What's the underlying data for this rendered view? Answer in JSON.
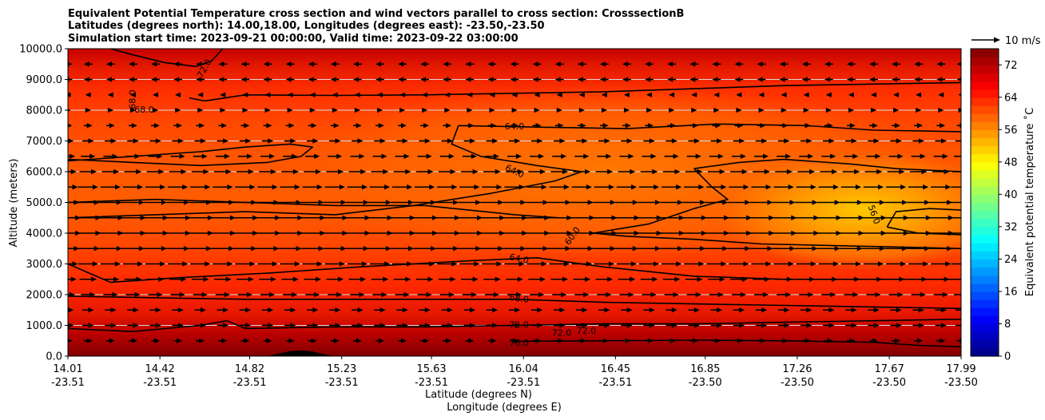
{
  "chart_data": {
    "type": "heatmap",
    "title": [
      "Equivalent Potential Temperature cross section and wind vectors parallel to cross section: CrosssectionB",
      "Latitudes (degrees north): 14.00,18.00, Longitudes (degrees east): -23.50,-23.50",
      "Simulation start time: 2023-09-21 00:00:00, Valid time: 2023-09-22 03:00:00"
    ],
    "xlabel": "Latitude (degrees N)",
    "xlabel2": "Longitude (degrees E)",
    "ylabel": "Altitude (meters)",
    "colorbar_label": "Equivalent potential temperature ˚C",
    "xlim": [
      14.01,
      17.99
    ],
    "ylim": [
      0,
      10000
    ],
    "x_ticks": [
      {
        "lat": "14.01",
        "lon": "-23.51",
        "v": 14.01
      },
      {
        "lat": "14.42",
        "lon": "-23.51",
        "v": 14.42
      },
      {
        "lat": "14.82",
        "lon": "-23.51",
        "v": 14.82
      },
      {
        "lat": "15.23",
        "lon": "-23.51",
        "v": 15.23
      },
      {
        "lat": "15.63",
        "lon": "-23.51",
        "v": 15.63
      },
      {
        "lat": "16.04",
        "lon": "-23.51",
        "v": 16.04
      },
      {
        "lat": "16.45",
        "lon": "-23.51",
        "v": 16.45
      },
      {
        "lat": "16.85",
        "lon": "-23.50",
        "v": 16.85
      },
      {
        "lat": "17.26",
        "lon": "-23.50",
        "v": 17.26
      },
      {
        "lat": "17.67",
        "lon": "-23.50",
        "v": 17.67
      },
      {
        "lat": "17.99",
        "lon": "-23.50",
        "v": 17.99
      }
    ],
    "y_ticks": [
      {
        "label": "0.0",
        "v": 0
      },
      {
        "label": "1000.0",
        "v": 1000
      },
      {
        "label": "2000.0",
        "v": 2000
      },
      {
        "label": "3000.0",
        "v": 3000
      },
      {
        "label": "4000.0",
        "v": 4000
      },
      {
        "label": "5000.0",
        "v": 5000
      },
      {
        "label": "6000.0",
        "v": 6000
      },
      {
        "label": "7000.0",
        "v": 7000
      },
      {
        "label": "8000.0",
        "v": 8000
      },
      {
        "label": "9000.0",
        "v": 9000
      },
      {
        "label": "10000.0",
        "v": 10000
      }
    ],
    "grid": "horizontal",
    "colorbar": {
      "min": 0,
      "max": 76,
      "step": 2,
      "tick_labels": [
        "0",
        "8",
        "16",
        "24",
        "32",
        "40",
        "48",
        "56",
        "64",
        "72"
      ],
      "tick_values": [
        0,
        8,
        16,
        24,
        32,
        40,
        48,
        56,
        64,
        72
      ],
      "colormap": "jet"
    },
    "wind_key": {
      "label": "10 m/s",
      "speed": 10
    },
    "contour_labels": [
      {
        "text": "72.0",
        "x": 14.62,
        "y": 9350,
        "rot": -60
      },
      {
        "text": "68.0",
        "x": 14.3,
        "y": 8350,
        "rot": -90
      },
      {
        "text": "68.0",
        "x": 14.35,
        "y": 8000,
        "rot": 0
      },
      {
        "text": "64.0",
        "x": 16.0,
        "y": 7450,
        "rot": 0
      },
      {
        "text": "64.0",
        "x": 16.0,
        "y": 6000,
        "rot": 25
      },
      {
        "text": "60.0",
        "x": 16.26,
        "y": 3900,
        "rot": -55
      },
      {
        "text": "64.0",
        "x": 16.02,
        "y": 3150,
        "rot": 12
      },
      {
        "text": "68.0",
        "x": 16.02,
        "y": 1860,
        "rot": 8
      },
      {
        "text": "72.0",
        "x": 16.02,
        "y": 1000,
        "rot": 0
      },
      {
        "text": "72.0",
        "x": 16.21,
        "y": 740,
        "rot": 0
      },
      {
        "text": "72.0",
        "x": 16.32,
        "y": 800,
        "rot": 0
      },
      {
        "text": "56.0",
        "x": 17.6,
        "y": 4600,
        "rot": 70
      },
      {
        "text": "76.0",
        "x": 16.02,
        "y": 420,
        "rot": 0
      }
    ],
    "contours": [
      {
        "level": 72,
        "points": [
          [
            14.2,
            10000
          ],
          [
            14.3,
            9800
          ],
          [
            14.44,
            9550
          ],
          [
            14.58,
            9420
          ],
          [
            14.65,
            9600
          ],
          [
            14.7,
            10000
          ]
        ]
      },
      {
        "level": 68,
        "points": [
          [
            14.55,
            8400
          ],
          [
            14.62,
            8300
          ],
          [
            14.8,
            8500
          ],
          [
            15.2,
            8480
          ],
          [
            15.6,
            8500
          ],
          [
            16.0,
            8550
          ],
          [
            16.4,
            8600
          ],
          [
            16.8,
            8700
          ],
          [
            17.2,
            8800
          ],
          [
            17.6,
            8850
          ],
          [
            17.99,
            8900
          ]
        ]
      },
      {
        "level": 64,
        "points": [
          [
            14.01,
            6350
          ],
          [
            14.3,
            6500
          ],
          [
            14.6,
            6650
          ],
          [
            14.8,
            6800
          ],
          [
            15.0,
            6900
          ],
          [
            15.1,
            6800
          ],
          [
            15.05,
            6500
          ],
          [
            14.9,
            6300
          ],
          [
            14.6,
            6200
          ],
          [
            14.3,
            6300
          ],
          [
            14.01,
            6400
          ]
        ]
      },
      {
        "level": 64,
        "points": [
          [
            15.75,
            7500
          ],
          [
            16.1,
            7450
          ],
          [
            16.5,
            7400
          ],
          [
            16.9,
            7550
          ],
          [
            17.3,
            7500
          ],
          [
            17.6,
            7350
          ],
          [
            17.99,
            7300
          ]
        ]
      },
      {
        "level": 64,
        "points": [
          [
            15.75,
            7500
          ],
          [
            15.72,
            6900
          ],
          [
            15.85,
            6500
          ],
          [
            16.1,
            6200
          ],
          [
            16.3,
            6000
          ],
          [
            16.18,
            5700
          ],
          [
            15.9,
            5300
          ],
          [
            15.55,
            4900
          ],
          [
            15.2,
            4600
          ],
          [
            14.8,
            4700
          ],
          [
            14.4,
            4600
          ],
          [
            14.01,
            4500
          ]
        ]
      },
      {
        "level": 60,
        "points": [
          [
            16.8,
            6100
          ],
          [
            17.0,
            6300
          ],
          [
            17.2,
            6400
          ],
          [
            17.5,
            6250
          ],
          [
            17.7,
            6100
          ],
          [
            17.99,
            6000
          ]
        ]
      },
      {
        "level": 60,
        "points": [
          [
            16.8,
            6100
          ],
          [
            16.88,
            5500
          ],
          [
            16.95,
            5100
          ],
          [
            16.8,
            4800
          ],
          [
            16.6,
            4300
          ],
          [
            16.35,
            4000
          ],
          [
            16.5,
            3900
          ],
          [
            16.8,
            3800
          ],
          [
            17.1,
            3650
          ],
          [
            17.4,
            3600
          ],
          [
            17.7,
            3550
          ],
          [
            17.99,
            3500
          ]
        ]
      },
      {
        "level": 56,
        "points": [
          [
            17.66,
            4200
          ],
          [
            17.7,
            4700
          ],
          [
            17.85,
            4800
          ],
          [
            17.99,
            4750
          ]
        ]
      },
      {
        "level": 56,
        "points": [
          [
            17.66,
            4200
          ],
          [
            17.8,
            4000
          ],
          [
            17.99,
            3950
          ]
        ]
      },
      {
        "level": 64,
        "points": [
          [
            14.01,
            5000
          ],
          [
            14.4,
            5100
          ],
          [
            14.8,
            5000
          ],
          [
            15.2,
            4900
          ],
          [
            15.6,
            4900
          ],
          [
            16.0,
            4600
          ],
          [
            16.2,
            4500
          ]
        ]
      },
      {
        "level": 64,
        "points": [
          [
            14.01,
            3000
          ],
          [
            14.2,
            2400
          ],
          [
            14.5,
            2550
          ],
          [
            14.9,
            2700
          ],
          [
            15.3,
            2900
          ],
          [
            15.8,
            3100
          ],
          [
            16.1,
            3200
          ],
          [
            16.4,
            2900
          ],
          [
            16.8,
            2600
          ],
          [
            17.2,
            2500
          ],
          [
            17.6,
            2500
          ],
          [
            17.99,
            2500
          ]
        ]
      },
      {
        "level": 68,
        "points": [
          [
            14.01,
            1950
          ],
          [
            14.4,
            1900
          ],
          [
            14.8,
            1850
          ],
          [
            15.2,
            1850
          ],
          [
            15.6,
            1850
          ],
          [
            16.0,
            1850
          ],
          [
            16.4,
            1750
          ],
          [
            16.8,
            1700
          ],
          [
            17.2,
            1650
          ],
          [
            17.6,
            1600
          ],
          [
            17.99,
            1550
          ]
        ]
      },
      {
        "level": 72,
        "points": [
          [
            14.01,
            900
          ],
          [
            14.3,
            800
          ],
          [
            14.6,
            1000
          ],
          [
            14.72,
            1150
          ],
          [
            14.8,
            900
          ],
          [
            15.2,
            950
          ],
          [
            15.6,
            950
          ],
          [
            16.0,
            1000
          ],
          [
            16.4,
            1050
          ],
          [
            16.8,
            1050
          ],
          [
            17.2,
            1100
          ],
          [
            17.6,
            1150
          ],
          [
            17.99,
            1200
          ]
        ]
      },
      {
        "level": 76,
        "points": [
          [
            16.0,
            480
          ],
          [
            16.4,
            500
          ],
          [
            16.8,
            520
          ],
          [
            17.2,
            500
          ],
          [
            17.6,
            450
          ],
          [
            17.8,
            350
          ],
          [
            17.99,
            300
          ]
        ]
      }
    ],
    "terrain": [
      [
        14.01,
        0
      ],
      [
        14.9,
        0
      ],
      [
        14.96,
        100
      ],
      [
        15.0,
        160
      ],
      [
        15.05,
        190
      ],
      [
        15.1,
        150
      ],
      [
        15.15,
        60
      ],
      [
        15.2,
        0
      ],
      [
        17.99,
        0
      ]
    ],
    "wind": {
      "x_positions": [
        14.01,
        14.1,
        14.2,
        14.3,
        14.4,
        14.5,
        14.6,
        14.7,
        14.8,
        14.9,
        15.0,
        15.1,
        15.2,
        15.3,
        15.4,
        15.5,
        15.6,
        15.7,
        15.8,
        15.9,
        16.0,
        16.1,
        16.2,
        16.3,
        16.4,
        16.5,
        16.6,
        16.7,
        16.8,
        16.9,
        17.0,
        17.1,
        17.2,
        17.3,
        17.4,
        17.5,
        17.6,
        17.7,
        17.8,
        17.9,
        17.99
      ],
      "levels": [
        {
          "z": 500,
          "u": 3
        },
        {
          "z": 1000,
          "u": 4
        },
        {
          "z": 1500,
          "u": 4
        },
        {
          "z": 2000,
          "u": 5
        },
        {
          "z": 2500,
          "u": 6
        },
        {
          "z": 3000,
          "u": 7
        },
        {
          "z": 3500,
          "u": 8
        },
        {
          "z": 4000,
          "u": 9
        },
        {
          "z": 4500,
          "u": 9
        },
        {
          "z": 5000,
          "u": 8
        },
        {
          "z": 5500,
          "u": 7
        },
        {
          "z": 6000,
          "u": 6
        },
        {
          "z": 6500,
          "u": 5
        },
        {
          "z": 7000,
          "u": 4
        },
        {
          "z": 7500,
          "u": 3
        },
        {
          "z": 8000,
          "u": 2
        },
        {
          "z": 8500,
          "u": -2
        },
        {
          "z": 9000,
          "u": -3
        },
        {
          "z": 9500,
          "u": -3
        }
      ]
    }
  }
}
